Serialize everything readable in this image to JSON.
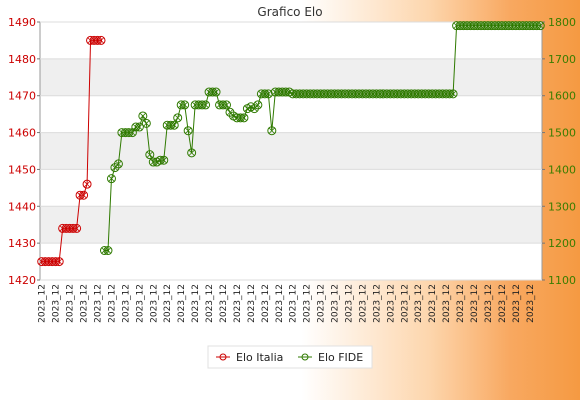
{
  "chart_data": {
    "type": "line",
    "title": "Grafico Elo",
    "left_axis": {
      "min": 1420,
      "max": 1490,
      "ticks": [
        1420,
        1430,
        1440,
        1450,
        1460,
        1470,
        1480,
        1490
      ],
      "color": "#cc0000"
    },
    "right_axis": {
      "min": 1100,
      "max": 1800,
      "ticks": [
        1100,
        1200,
        1300,
        1400,
        1500,
        1600,
        1700,
        1800
      ],
      "color": "#3a7d00"
    },
    "grid": "alternating-bands",
    "legend": "bottom-center",
    "x_label_sample": "2023_12",
    "series": [
      {
        "name": "Elo Italia",
        "axis": "left",
        "color": "#cc0000",
        "values": [
          1425,
          1425,
          1425,
          1425,
          1425,
          1425,
          1434,
          1434,
          1434,
          1434,
          1434,
          1443,
          1443,
          1446,
          1485,
          1485,
          1485,
          1485
        ]
      },
      {
        "name": "Elo FIDE",
        "axis": "right",
        "color": "#2f7a00",
        "start_index": 18,
        "values": [
          1180,
          1180,
          1375,
          1405,
          1415,
          1500,
          1500,
          1500,
          1500,
          1515,
          1515,
          1545,
          1525,
          1440,
          1420,
          1420,
          1425,
          1425,
          1520,
          1520,
          1520,
          1540,
          1575,
          1575,
          1505,
          1445,
          1575,
          1575,
          1575,
          1575,
          1610,
          1610,
          1610,
          1575,
          1575,
          1575,
          1555,
          1545,
          1540,
          1540,
          1540,
          1565,
          1570,
          1565,
          1575,
          1605,
          1605,
          1605,
          1505,
          1610,
          1610,
          1610,
          1610,
          1610,
          1605,
          1605,
          1605,
          1605,
          1605,
          1605,
          1605,
          1605,
          1605,
          1605,
          1605,
          1605,
          1605,
          1605,
          1605,
          1605,
          1605,
          1605,
          1605,
          1605,
          1605,
          1605,
          1605,
          1605,
          1605,
          1605,
          1605,
          1605,
          1605,
          1605,
          1605,
          1605,
          1605,
          1605,
          1605,
          1605,
          1605,
          1605,
          1605,
          1605,
          1605,
          1605,
          1605,
          1605,
          1605,
          1605,
          1605,
          1790,
          1790,
          1790,
          1790,
          1790,
          1790,
          1790,
          1790,
          1790,
          1790,
          1790,
          1790,
          1790,
          1790,
          1790,
          1790,
          1790,
          1790,
          1790,
          1790,
          1790,
          1790,
          1790,
          1790,
          1790
        ]
      }
    ]
  }
}
